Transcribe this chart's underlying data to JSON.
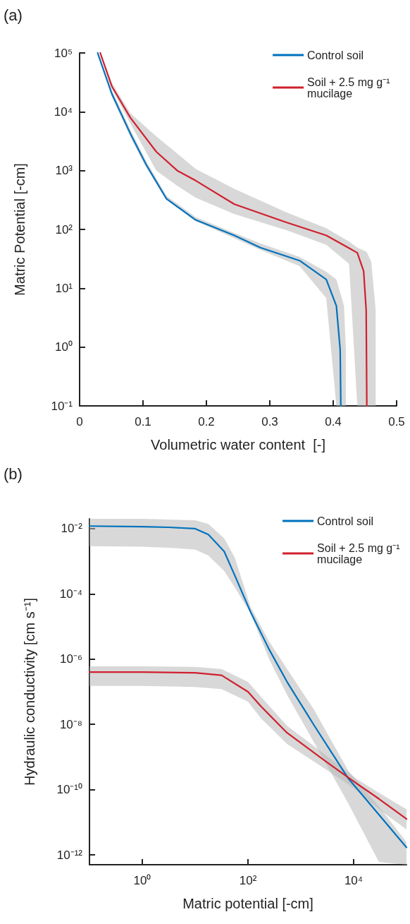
{
  "chart_data": [
    {
      "type": "line",
      "title": "(a)",
      "xlabel": "Volumetric water content  [-]",
      "ylabel": "Matric Potential [-cm]",
      "log": "y",
      "xlim": [
        0,
        0.5
      ],
      "xticks": [
        0,
        0.1,
        0.2,
        0.3,
        0.4,
        0.5
      ],
      "ylim": [
        0.1,
        100000
      ],
      "yticks": [
        {
          "value": 0.1,
          "label": "10⁻¹"
        },
        {
          "value": 1,
          "label": "10⁰"
        },
        {
          "value": 10,
          "label": "10¹"
        },
        {
          "value": 100,
          "label": "10²"
        },
        {
          "value": 1000,
          "label": "10³"
        },
        {
          "value": 10000,
          "label": "10⁴"
        },
        {
          "value": 100000,
          "label": "10⁵"
        }
      ],
      "grid": false,
      "legend": "top right",
      "series": [
        {
          "name": "Control soil",
          "color": "#0072bd",
          "x": [
            0.0285,
            0.051,
            0.08,
            0.105,
            0.137,
            0.183,
            0.244,
            0.285,
            0.347,
            0.389,
            0.405,
            0.411,
            0.412,
            0.417,
            0.42
          ],
          "values": [
            100000,
            20000,
            4270,
            1260,
            331,
            145,
            79,
            49,
            29.5,
            14.1,
            5,
            0.9,
            0.1,
            null,
            null
          ],
          "lower": [
            89000,
            17800,
            3700,
            1120,
            316,
            138,
            71,
            45,
            23.7,
            6.8,
            0.1,
            0.1,
            0.1,
            0.1,
            0.1
          ],
          "upper": [
            100000,
            22900,
            5000,
            1450,
            372,
            162,
            87,
            58,
            34,
            19,
            14.1,
            8.4,
            7.8,
            5,
            0.9
          ]
        },
        {
          "name": "Soil + 2.5 mg g⁻¹ mucilage",
          "color": "#d0202e",
          "x": [
            0.0326,
            0.051,
            0.08,
            0.121,
            0.154,
            0.183,
            0.244,
            0.326,
            0.389,
            0.425,
            0.438,
            0.448,
            0.452,
            0.453,
            0.46,
            0.467
          ],
          "values": [
            100000,
            26900,
            7940,
            2090,
            1000,
            676,
            269,
            132,
            79,
            48,
            40,
            19.5,
            4.2,
            0.1,
            null,
            null
          ],
          "lower": [
            89000,
            24500,
            6300,
            1000,
            550,
            347,
            182,
            97,
            55,
            26,
            0.1,
            0.1,
            0.1,
            0.1,
            0.1,
            0.1
          ],
          "upper": [
            100000,
            31000,
            9500,
            3800,
            1950,
            1070,
            490,
            195,
            105,
            62,
            49,
            44,
            42,
            41,
            28,
            4.2
          ]
        }
      ]
    },
    {
      "type": "line",
      "title": "(b)",
      "xlabel": "Matric potential [-cm]",
      "ylabel": "Hydraulic conductivity [cm s⁻¹]",
      "log": "xy",
      "xlim": [
        0.1,
        100000
      ],
      "xticks": [
        {
          "value": 1,
          "label": "10⁰"
        },
        {
          "value": 100,
          "label": "10²"
        },
        {
          "value": 10000,
          "label": "10⁴"
        }
      ],
      "ylim": [
        5e-13,
        0.02
      ],
      "yticks": [
        {
          "value": 1e-12,
          "label": "10⁻¹²"
        },
        {
          "value": 1e-10,
          "label": "10⁻¹⁰"
        },
        {
          "value": 1e-08,
          "label": "10⁻⁸"
        },
        {
          "value": 1e-06,
          "label": "10⁻⁶"
        },
        {
          "value": 0.0001,
          "label": "10⁻⁴"
        },
        {
          "value": 0.01,
          "label": "10⁻²"
        }
      ],
      "grid": false,
      "legend": "top right",
      "series": [
        {
          "name": "Control soil",
          "color": "#0072bd",
          "x": [
            0.1,
            1,
            3.16,
            10,
            17.8,
            35.5,
            56.2,
            112,
            251,
            550,
            1740,
            7760,
            30200,
            100000
          ],
          "values": [
            0.012,
            0.0115,
            0.011,
            0.01,
            0.0066,
            0.002,
            0.00037,
            2.8e-05,
            2e-06,
            2e-07,
            1e-08,
            2.3e-10,
            1.7e-11,
            1.7e-12
          ],
          "upper": [
            0.02,
            0.02,
            0.019,
            0.018,
            0.014,
            0.005,
            0.0013,
            4e-05,
            3.5e-06,
            5e-07,
            3e-08,
            4e-10,
            3e-11,
            2.5e-12
          ],
          "lower": [
            0.0029,
            0.0028,
            0.0026,
            0.0023,
            0.0015,
            0.0005,
            0.00016,
            2.5e-05,
            1e-06,
            8e-08,
            3e-09,
            4e-11,
            6e-13,
            5e-13
          ]
        },
        {
          "name": "Soil + 2.5 mg g⁻¹ mucilage",
          "color": "#d0202e",
          "x": [
            0.1,
            1,
            10,
            31.6,
            100,
            178,
            550,
            3090,
            11000,
            30200,
            100000
          ],
          "values": [
            4e-07,
            4e-07,
            3.8e-07,
            3.2e-07,
            1e-07,
            3.5e-08,
            5.5e-09,
            7e-10,
            1.6e-10,
            5.2e-11,
            1.26e-11
          ],
          "upper": [
            6e-07,
            6e-07,
            5.8e-07,
            5e-07,
            2e-07,
            7e-08,
            9e-09,
            1.1e-09,
            2.2e-10,
            8e-11,
            2.5e-11
          ],
          "lower": [
            1.5e-07,
            1.5e-07,
            1.4e-07,
            1.2e-07,
            5e-08,
            1.5e-08,
            2.5e-09,
            4e-10,
            1e-10,
            2.5e-11,
            6e-12
          ]
        }
      ]
    }
  ]
}
